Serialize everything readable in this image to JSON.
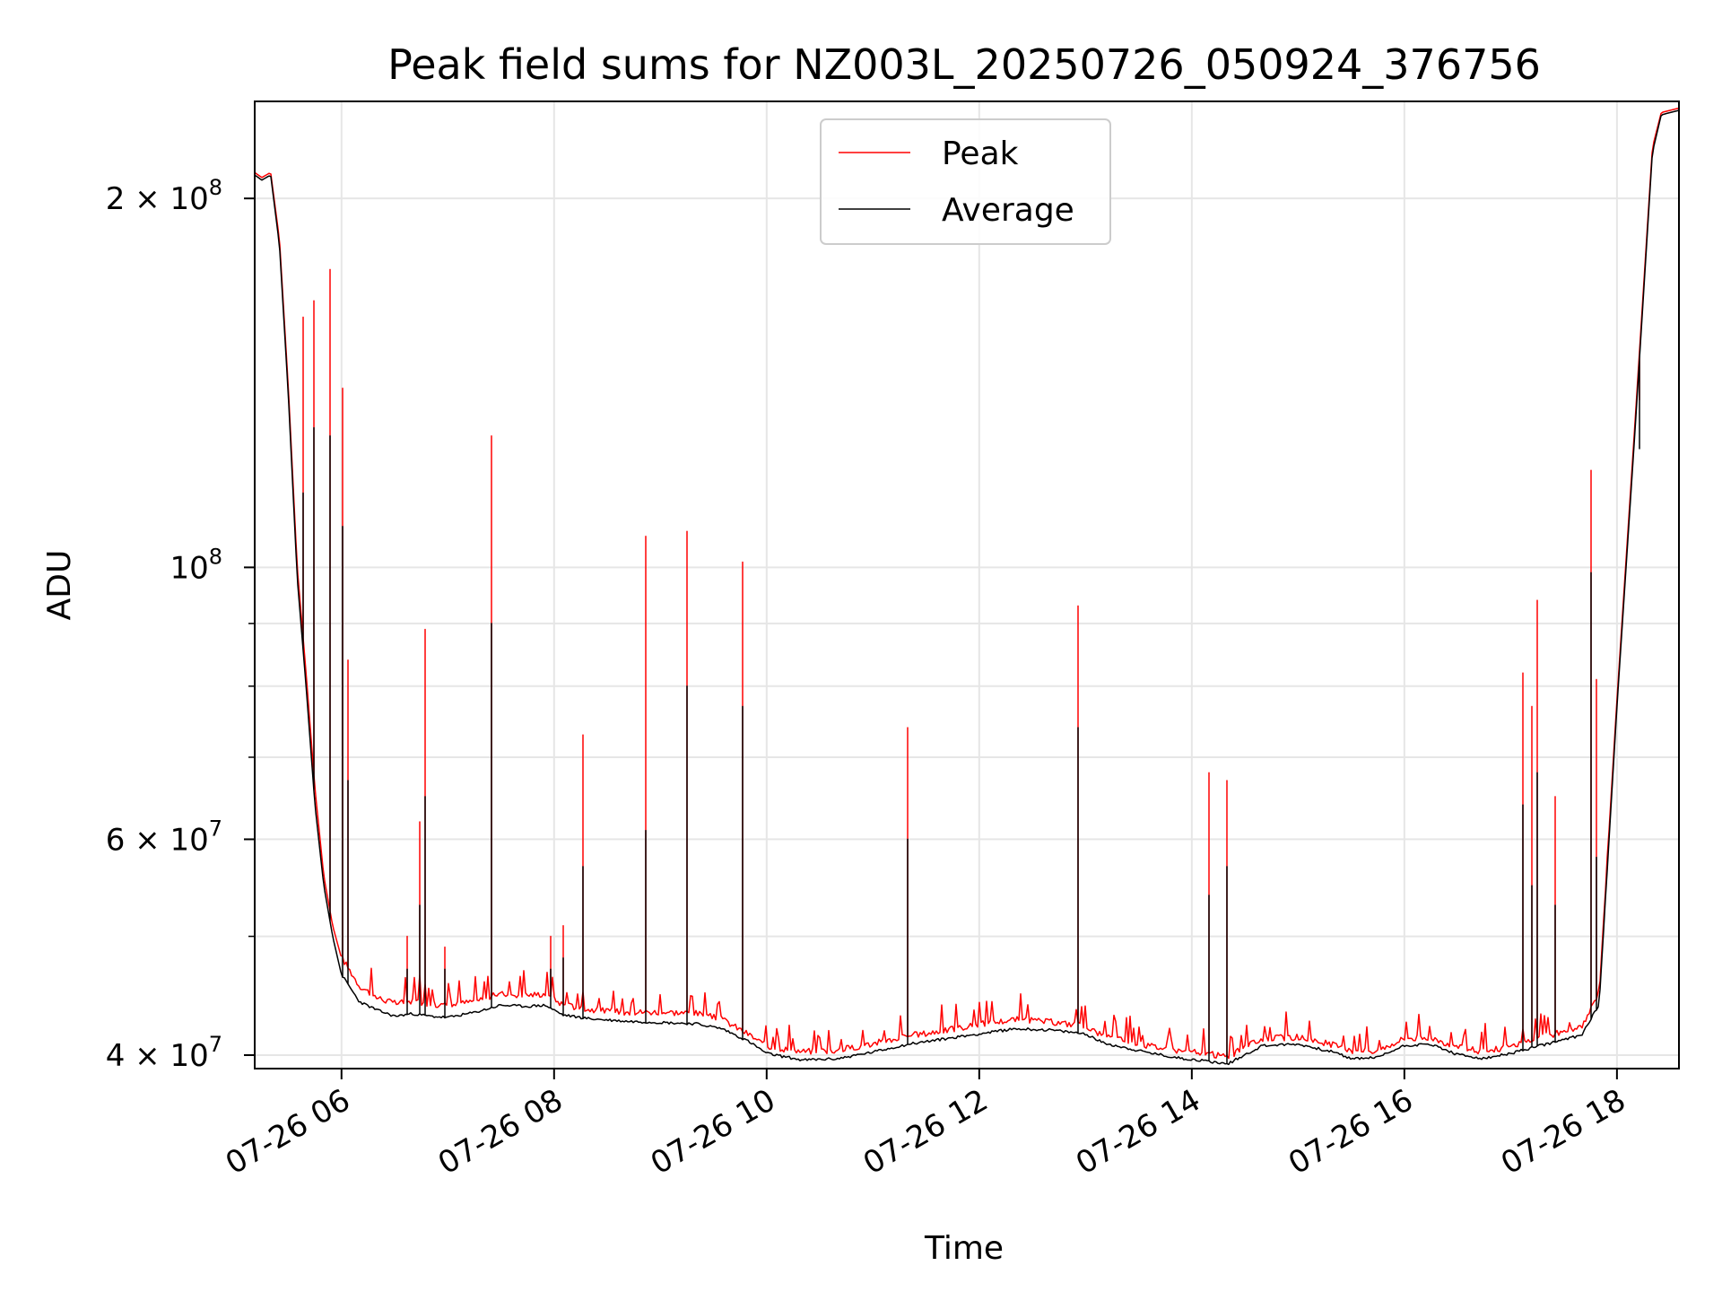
{
  "chart_data": {
    "type": "line",
    "title": "Peak field sums for NZ003L_20250726_050924_376756",
    "xlabel": "Time",
    "ylabel": "ADU",
    "y_scale": "log",
    "grid": true,
    "legend_position": "upper-center",
    "xlim": [
      "07-26 05:11",
      "07-26 18:35"
    ],
    "ylim": [
      39000000,
      240000000
    ],
    "x_ticks": [
      "07-26 06",
      "07-26 08",
      "07-26 10",
      "07-26 12",
      "07-26 14",
      "07-26 16",
      "07-26 18"
    ],
    "y_major_ticks": [
      {
        "value": 40000000,
        "label": "4 × 10",
        "exp": "7"
      },
      {
        "value": 60000000,
        "label": "6 × 10",
        "exp": "7"
      },
      {
        "value": 100000000,
        "label": "10",
        "exp": "8"
      },
      {
        "value": 200000000,
        "label": "2 × 10",
        "exp": "8"
      }
    ],
    "y_minor_ticks": [
      50000000,
      70000000,
      80000000,
      90000000
    ],
    "series": [
      {
        "name": "Peak",
        "color": "#ff0000",
        "baseline": [
          [
            "07-26 05:11",
            210000000
          ],
          [
            "07-26 05:15",
            208000000
          ],
          [
            "07-26 05:20",
            210000000
          ],
          [
            "07-26 05:25",
            185000000
          ],
          [
            "07-26 05:30",
            140000000
          ],
          [
            "07-26 05:35",
            100000000
          ],
          [
            "07-26 05:40",
            82000000
          ],
          [
            "07-26 05:45",
            66000000
          ],
          [
            "07-26 05:50",
            56000000
          ],
          [
            "07-26 05:55",
            51000000
          ],
          [
            "07-26 06:00",
            48000000
          ],
          [
            "07-26 06:10",
            45500000
          ],
          [
            "07-26 06:20",
            44500000
          ],
          [
            "07-26 06:30",
            44000000
          ],
          [
            "07-26 06:40",
            44200000
          ],
          [
            "07-26 06:50",
            44000000
          ],
          [
            "07-26 07:00",
            43800000
          ],
          [
            "07-26 07:15",
            44200000
          ],
          [
            "07-26 07:30",
            44800000
          ],
          [
            "07-26 07:45",
            44700000
          ],
          [
            "07-26 07:55",
            44800000
          ],
          [
            "07-26 08:05",
            43900000
          ],
          [
            "07-26 08:20",
            43500000
          ],
          [
            "07-26 08:40",
            43300000
          ],
          [
            "07-26 09:00",
            43300000
          ],
          [
            "07-26 09:20",
            43200000
          ],
          [
            "07-26 09:35",
            42700000
          ],
          [
            "07-26 09:50",
            41500000
          ],
          [
            "07-26 10:00",
            40600000
          ],
          [
            "07-26 10:20",
            40200000
          ],
          [
            "07-26 10:40",
            40300000
          ],
          [
            "07-26 11:00",
            40800000
          ],
          [
            "07-26 11:20",
            41400000
          ],
          [
            "07-26 11:40",
            41800000
          ],
          [
            "07-26 12:00",
            42300000
          ],
          [
            "07-26 12:20",
            42700000
          ],
          [
            "07-26 12:40",
            42500000
          ],
          [
            "07-26 13:00",
            42200000
          ],
          [
            "07-26 13:10",
            41400000
          ],
          [
            "07-26 13:30",
            40800000
          ],
          [
            "07-26 13:50",
            40300000
          ],
          [
            "07-26 14:10",
            40000000
          ],
          [
            "07-26 14:20",
            39800000
          ],
          [
            "07-26 14:40",
            41200000
          ],
          [
            "07-26 15:00",
            41300000
          ],
          [
            "07-26 15:20",
            40700000
          ],
          [
            "07-26 15:30",
            40200000
          ],
          [
            "07-26 15:45",
            40300000
          ],
          [
            "07-26 16:00",
            41200000
          ],
          [
            "07-26 16:15",
            41300000
          ],
          [
            "07-26 16:30",
            40500000
          ],
          [
            "07-26 16:45",
            40200000
          ],
          [
            "07-26 17:00",
            40600000
          ],
          [
            "07-26 17:20",
            41400000
          ],
          [
            "07-26 17:40",
            42000000
          ],
          [
            "07-26 17:50",
            45000000
          ],
          [
            "07-26 18:00",
            78000000
          ],
          [
            "07-26 18:10",
            130000000
          ],
          [
            "07-26 18:20",
            220000000
          ],
          [
            "07-26 18:25",
            235000000
          ],
          [
            "07-26 18:35",
            237000000
          ]
        ],
        "spikes": [
          [
            "07-26 05:38",
            160000000
          ],
          [
            "07-26 05:44",
            165000000
          ],
          [
            "07-26 05:54",
            175000000
          ],
          [
            "07-26 06:01",
            140000000
          ],
          [
            "07-26 06:04",
            84000000
          ],
          [
            "07-26 06:37",
            50000000
          ],
          [
            "07-26 06:44",
            62000000
          ],
          [
            "07-26 06:47",
            89000000
          ],
          [
            "07-26 06:58",
            49000000
          ],
          [
            "07-26 07:25",
            128000000
          ],
          [
            "07-26 07:58",
            50000000
          ],
          [
            "07-26 08:05",
            51000000
          ],
          [
            "07-26 08:16",
            73000000
          ],
          [
            "07-26 08:52",
            106000000
          ],
          [
            "07-26 09:15",
            107000000
          ],
          [
            "07-26 09:46",
            101000000
          ],
          [
            "07-26 11:20",
            74000000
          ],
          [
            "07-26 12:56",
            93000000
          ],
          [
            "07-26 14:10",
            68000000
          ],
          [
            "07-26 14:20",
            67000000
          ],
          [
            "07-26 17:07",
            82000000
          ],
          [
            "07-26 17:12",
            77000000
          ],
          [
            "07-26 17:15",
            94000000
          ],
          [
            "07-26 17:25",
            65000000
          ],
          [
            "07-26 17:45",
            120000000
          ],
          [
            "07-26 17:48",
            81000000
          ],
          [
            "07-26 18:13",
            137000000
          ]
        ]
      },
      {
        "name": "Average",
        "color": "#000000",
        "baseline": [
          [
            "07-26 05:11",
            209000000
          ],
          [
            "07-26 05:15",
            207000000
          ],
          [
            "07-26 05:20",
            209000000
          ],
          [
            "07-26 05:25",
            183000000
          ],
          [
            "07-26 05:30",
            138000000
          ],
          [
            "07-26 05:35",
            98000000
          ],
          [
            "07-26 05:40",
            80000000
          ],
          [
            "07-26 05:45",
            64000000
          ],
          [
            "07-26 05:50",
            55000000
          ],
          [
            "07-26 05:55",
            50000000
          ],
          [
            "07-26 06:00",
            46500000
          ],
          [
            "07-26 06:10",
            44200000
          ],
          [
            "07-26 06:20",
            43500000
          ],
          [
            "07-26 06:30",
            43000000
          ],
          [
            "07-26 06:40",
            43200000
          ],
          [
            "07-26 06:50",
            43000000
          ],
          [
            "07-26 07:00",
            42900000
          ],
          [
            "07-26 07:15",
            43300000
          ],
          [
            "07-26 07:30",
            43900000
          ],
          [
            "07-26 07:45",
            43800000
          ],
          [
            "07-26 07:55",
            43900000
          ],
          [
            "07-26 08:05",
            43100000
          ],
          [
            "07-26 08:20",
            42800000
          ],
          [
            "07-26 08:40",
            42600000
          ],
          [
            "07-26 09:00",
            42500000
          ],
          [
            "07-26 09:20",
            42400000
          ],
          [
            "07-26 09:35",
            42000000
          ],
          [
            "07-26 09:50",
            41000000
          ],
          [
            "07-26 10:00",
            40100000
          ],
          [
            "07-26 10:20",
            39600000
          ],
          [
            "07-26 10:40",
            39700000
          ],
          [
            "07-26 11:00",
            40200000
          ],
          [
            "07-26 11:20",
            40800000
          ],
          [
            "07-26 11:40",
            41200000
          ],
          [
            "07-26 12:00",
            41600000
          ],
          [
            "07-26 12:20",
            42000000
          ],
          [
            "07-26 12:40",
            41900000
          ],
          [
            "07-26 13:00",
            41600000
          ],
          [
            "07-26 13:10",
            40900000
          ],
          [
            "07-26 13:30",
            40300000
          ],
          [
            "07-26 13:50",
            39800000
          ],
          [
            "07-26 14:10",
            39500000
          ],
          [
            "07-26 14:20",
            39300000
          ],
          [
            "07-26 14:40",
            40700000
          ],
          [
            "07-26 15:00",
            40800000
          ],
          [
            "07-26 15:20",
            40200000
          ],
          [
            "07-26 15:30",
            39700000
          ],
          [
            "07-26 15:45",
            39800000
          ],
          [
            "07-26 16:00",
            40700000
          ],
          [
            "07-26 16:15",
            40800000
          ],
          [
            "07-26 16:30",
            40000000
          ],
          [
            "07-26 16:45",
            39700000
          ],
          [
            "07-26 17:00",
            40100000
          ],
          [
            "07-26 17:20",
            40800000
          ],
          [
            "07-26 17:40",
            41500000
          ],
          [
            "07-26 17:50",
            44000000
          ],
          [
            "07-26 18:00",
            77000000
          ],
          [
            "07-26 18:10",
            128000000
          ],
          [
            "07-26 18:20",
            218000000
          ],
          [
            "07-26 18:25",
            234000000
          ],
          [
            "07-26 18:35",
            236000000
          ]
        ],
        "spikes": [
          [
            "07-26 05:38",
            115000000
          ],
          [
            "07-26 05:44",
            130000000
          ],
          [
            "07-26 05:54",
            128000000
          ],
          [
            "07-26 06:01",
            108000000
          ],
          [
            "07-26 06:04",
            67000000
          ],
          [
            "07-26 06:37",
            47000000
          ],
          [
            "07-26 06:44",
            53000000
          ],
          [
            "07-26 06:47",
            65000000
          ],
          [
            "07-26 06:58",
            47000000
          ],
          [
            "07-26 07:25",
            90000000
          ],
          [
            "07-26 07:58",
            47000000
          ],
          [
            "07-26 08:05",
            48000000
          ],
          [
            "07-26 08:16",
            57000000
          ],
          [
            "07-26 08:52",
            61000000
          ],
          [
            "07-26 09:15",
            80000000
          ],
          [
            "07-26 09:46",
            77000000
          ],
          [
            "07-26 11:20",
            60000000
          ],
          [
            "07-26 12:56",
            74000000
          ],
          [
            "07-26 14:10",
            54000000
          ],
          [
            "07-26 14:20",
            57000000
          ],
          [
            "07-26 17:07",
            64000000
          ],
          [
            "07-26 17:12",
            55000000
          ],
          [
            "07-26 17:15",
            68000000
          ],
          [
            "07-26 17:25",
            53000000
          ],
          [
            "07-26 17:45",
            99000000
          ],
          [
            "07-26 17:48",
            58000000
          ],
          [
            "07-26 18:13",
            125000000
          ]
        ]
      }
    ]
  }
}
